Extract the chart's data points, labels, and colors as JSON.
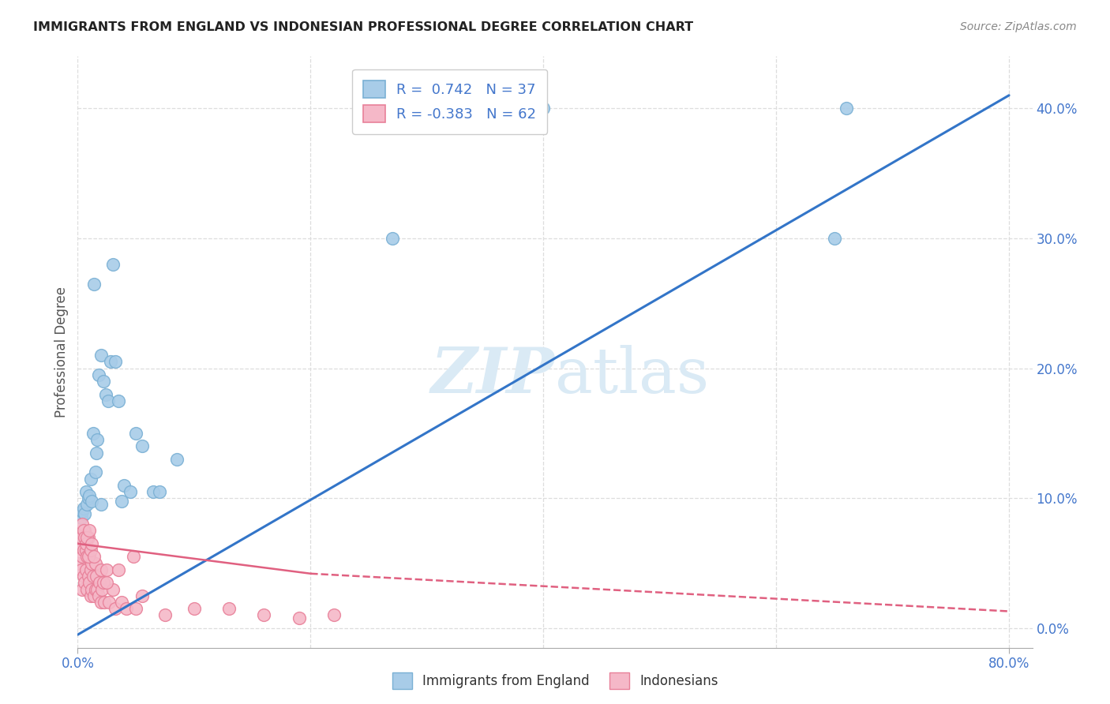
{
  "title": "IMMIGRANTS FROM ENGLAND VS INDONESIAN PROFESSIONAL DEGREE CORRELATION CHART",
  "source": "Source: ZipAtlas.com",
  "ylabel": "Professional Degree",
  "xlim": [
    0,
    82
  ],
  "ylim": [
    -1.5,
    44
  ],
  "blue_R": 0.742,
  "blue_N": 37,
  "pink_R": -0.383,
  "pink_N": 62,
  "blue_dot_color": "#a8cce8",
  "blue_dot_edge": "#7ab0d4",
  "pink_dot_color": "#f5b8c8",
  "pink_dot_edge": "#e88099",
  "blue_line_color": "#3375c8",
  "pink_line_color": "#e06080",
  "watermark_color": "#daeaf5",
  "legend_label_blue": "Immigrants from England",
  "legend_label_pink": "Indonesians",
  "tick_color": "#4477cc",
  "grid_color": "#dddddd",
  "ylabel_right_vals": [
    0,
    10,
    20,
    30,
    40
  ],
  "xlabel_vals": [
    0,
    80
  ],
  "xlabel_labels": [
    "0.0%",
    "80.0%"
  ],
  "blue_line_x0": 0,
  "blue_line_y0": -0.5,
  "blue_line_x1": 80,
  "blue_line_y1": 41,
  "pink_line_solid_x0": 0,
  "pink_line_solid_y0": 6.5,
  "pink_line_solid_x1": 20,
  "pink_line_solid_y1": 4.2,
  "pink_line_dash_x0": 20,
  "pink_line_dash_y0": 4.2,
  "pink_line_dash_x1": 80,
  "pink_line_dash_y1": 1.3,
  "blue_x": [
    0.3,
    0.4,
    0.5,
    0.6,
    0.7,
    0.8,
    0.9,
    1.0,
    1.1,
    1.2,
    1.3,
    1.5,
    1.6,
    1.7,
    1.8,
    2.0,
    2.2,
    2.4,
    2.6,
    2.8,
    3.0,
    3.2,
    3.5,
    4.0,
    4.5,
    5.0,
    5.5,
    6.5,
    7.0,
    8.5,
    27.0,
    40.0,
    66.0,
    1.4,
    2.0,
    3.8,
    65.0
  ],
  "blue_y": [
    8.5,
    9.0,
    9.2,
    8.8,
    10.5,
    9.5,
    10.0,
    10.2,
    11.5,
    9.8,
    15.0,
    12.0,
    13.5,
    14.5,
    19.5,
    21.0,
    19.0,
    18.0,
    17.5,
    20.5,
    28.0,
    20.5,
    17.5,
    11.0,
    10.5,
    15.0,
    14.0,
    10.5,
    10.5,
    13.0,
    30.0,
    40.0,
    40.0,
    26.5,
    9.5,
    9.8,
    30.0
  ],
  "pink_x": [
    0.1,
    0.2,
    0.3,
    0.3,
    0.4,
    0.4,
    0.5,
    0.5,
    0.6,
    0.6,
    0.7,
    0.7,
    0.8,
    0.8,
    0.9,
    0.9,
    1.0,
    1.0,
    1.1,
    1.1,
    1.2,
    1.2,
    1.3,
    1.4,
    1.5,
    1.5,
    1.6,
    1.7,
    1.8,
    1.9,
    2.0,
    2.0,
    2.1,
    2.2,
    2.3,
    2.5,
    2.7,
    3.0,
    3.2,
    3.5,
    3.8,
    4.2,
    5.0,
    5.5,
    7.5,
    10.0,
    13.0,
    16.0,
    19.0,
    22.0,
    0.4,
    0.5,
    0.6,
    0.7,
    0.8,
    0.9,
    1.0,
    1.1,
    1.2,
    1.4,
    2.5,
    4.8
  ],
  "pink_y": [
    5.0,
    6.5,
    7.0,
    4.5,
    5.5,
    3.0,
    6.0,
    4.0,
    7.5,
    3.5,
    6.0,
    4.5,
    5.5,
    3.0,
    7.0,
    4.0,
    5.5,
    3.5,
    4.5,
    2.5,
    5.0,
    3.0,
    4.0,
    2.5,
    5.0,
    3.0,
    4.0,
    3.0,
    2.5,
    3.5,
    4.5,
    2.0,
    3.0,
    3.5,
    2.0,
    4.5,
    2.0,
    3.0,
    1.5,
    4.5,
    2.0,
    1.5,
    1.5,
    2.5,
    1.0,
    1.5,
    1.5,
    1.0,
    0.8,
    1.0,
    8.0,
    7.5,
    7.0,
    6.5,
    7.0,
    5.5,
    7.5,
    6.0,
    6.5,
    5.5,
    3.5,
    5.5
  ]
}
